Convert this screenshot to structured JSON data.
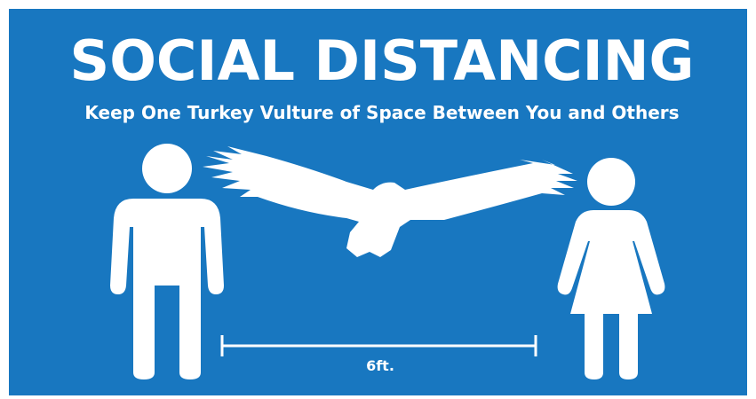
{
  "title": "SOCIAL DISTANCING",
  "subtitle": "Keep One Turkey Vulture of Space Between You and Others",
  "distance_label": "6ft."
}
